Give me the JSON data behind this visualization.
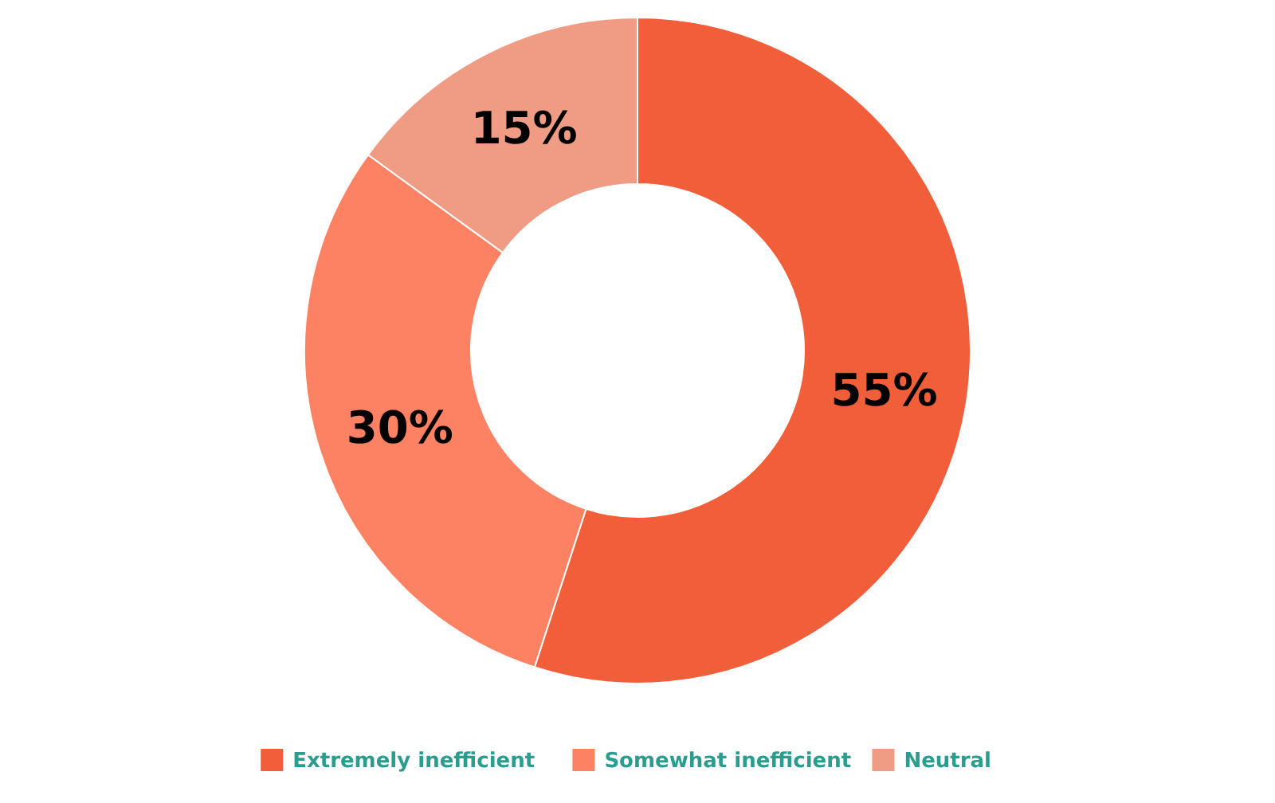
{
  "chart_data": {
    "type": "donut",
    "categories": [
      "Extremely inefficient",
      "Somewhat inefficient",
      "Neutral"
    ],
    "values": [
      55,
      30,
      15
    ],
    "colors": [
      "#f15e3a",
      "#fd8264",
      "#f09c85"
    ],
    "value_labels": [
      "55%",
      "30%",
      "15%"
    ],
    "legend": "bottom"
  }
}
